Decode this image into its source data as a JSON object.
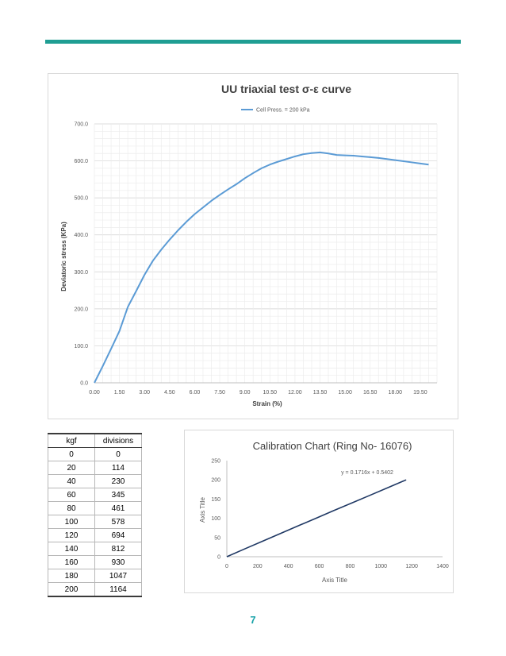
{
  "colors": {
    "rule": "#1f9e93",
    "series1": "#5b9bd5",
    "series2": "#1f3864",
    "page_number": "#17a2a8"
  },
  "chart_data": [
    {
      "type": "line",
      "title": "UU triaxial test σ-ε curve",
      "xlabel": "Strain (%)",
      "ylabel": "Deviatoric stress (KPa)",
      "xlim": [
        0,
        20.5
      ],
      "ylim": [
        0,
        700
      ],
      "x_ticks": [
        "0.00",
        "1.50",
        "3.00",
        "4.50",
        "6.00",
        "7.50",
        "9.00",
        "10.50",
        "12.00",
        "13.50",
        "15.00",
        "16.50",
        "18.00",
        "19.50"
      ],
      "y_ticks": [
        "0.0",
        "100.0",
        "200.0",
        "300.0",
        "400.0",
        "500.0",
        "600.0",
        "700.0"
      ],
      "grid": true,
      "legend": "top",
      "series": [
        {
          "name": "Cell Press. = 200 kPa",
          "x": [
            0,
            0.5,
            1.0,
            1.5,
            2.0,
            2.5,
            3.0,
            3.5,
            4.0,
            4.5,
            5.0,
            5.5,
            6.0,
            6.5,
            7.0,
            7.5,
            8.0,
            8.5,
            9.0,
            9.5,
            10.0,
            10.5,
            11.0,
            11.5,
            12.0,
            12.5,
            13.0,
            13.5,
            14.0,
            14.5,
            15.0,
            15.5,
            16.0,
            16.5,
            17.0,
            17.5,
            18.0,
            18.5,
            19.0,
            19.5,
            20.0
          ],
          "values": [
            0,
            45,
            92,
            140,
            205,
            248,
            292,
            330,
            360,
            387,
            412,
            435,
            456,
            474,
            492,
            508,
            523,
            537,
            553,
            567,
            580,
            590,
            598,
            605,
            612,
            618,
            621,
            623,
            620,
            616,
            615,
            614,
            612,
            610,
            608,
            605,
            602,
            599,
            596,
            593,
            590
          ]
        }
      ]
    },
    {
      "type": "line",
      "title": "Calibration Chart (Ring No- 16076)",
      "xlabel": "Axis Title",
      "ylabel": "Axis Title",
      "xlim": [
        0,
        1400
      ],
      "ylim": [
        0,
        250
      ],
      "x_ticks": [
        "0",
        "200",
        "400",
        "600",
        "800",
        "1000",
        "1200",
        "1400"
      ],
      "y_ticks": [
        "0",
        "50",
        "100",
        "150",
        "200",
        "250"
      ],
      "grid": false,
      "annotation": "y = 0.1716x + 0.5402",
      "series": [
        {
          "x": [
            0,
            114,
            230,
            345,
            461,
            578,
            694,
            812,
            930,
            1047,
            1164
          ],
          "values": [
            0,
            20,
            40,
            60,
            80,
            100,
            120,
            140,
            160,
            180,
            200
          ]
        }
      ]
    }
  ],
  "table": {
    "headers": [
      "kgf",
      "divisions"
    ],
    "rows": [
      [
        "0",
        "0"
      ],
      [
        "20",
        "114"
      ],
      [
        "40",
        "230"
      ],
      [
        "60",
        "345"
      ],
      [
        "80",
        "461"
      ],
      [
        "100",
        "578"
      ],
      [
        "120",
        "694"
      ],
      [
        "140",
        "812"
      ],
      [
        "160",
        "930"
      ],
      [
        "180",
        "1047"
      ],
      [
        "200",
        "1164"
      ]
    ]
  },
  "page_number": "7"
}
